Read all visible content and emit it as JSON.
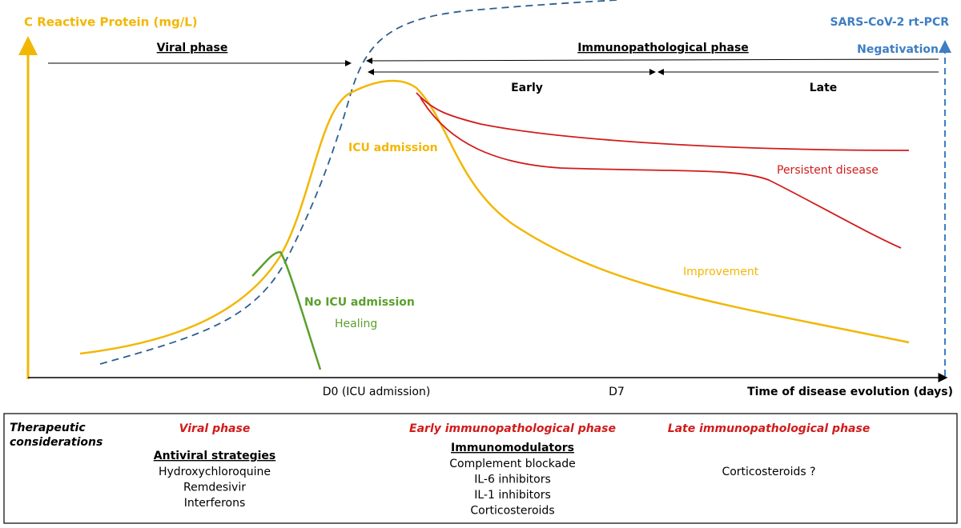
{
  "axes": {
    "y_label": "C Reactive Protein (mg/L)",
    "x_label": "Time of disease evolution (days)",
    "right_label": "SARS-CoV-2 rt-PCR",
    "right_sublabel": "Negativation"
  },
  "phases": {
    "viral": "Viral phase",
    "immuno": "Immunopathological phase",
    "early": "Early",
    "late": "Late"
  },
  "x_markers": [
    "D0 (ICU admission)",
    "D7"
  ],
  "curve_labels": {
    "icu": "ICU admission",
    "no_icu": "No ICU admission",
    "healing": "Healing",
    "persistent": "Persistent disease",
    "improvement": "Improvement"
  },
  "therapeutic": {
    "title_lines": [
      "Therapeutic",
      "considerations"
    ],
    "columns": [
      {
        "phase": "Viral phase",
        "heading": "Antiviral strategies",
        "items": [
          "Hydroxychloroquine",
          "Remdesivir",
          "Interferons"
        ]
      },
      {
        "phase": "Early immunopathological phase",
        "heading": "Immunomodulators",
        "items": [
          "Complement blockade",
          "IL-6 inhibitors",
          "IL-1 inhibitors",
          "Corticosteroids"
        ]
      },
      {
        "phase": "Late immunopathological phase",
        "items": [
          "Corticosteroids ?"
        ]
      }
    ]
  }
}
